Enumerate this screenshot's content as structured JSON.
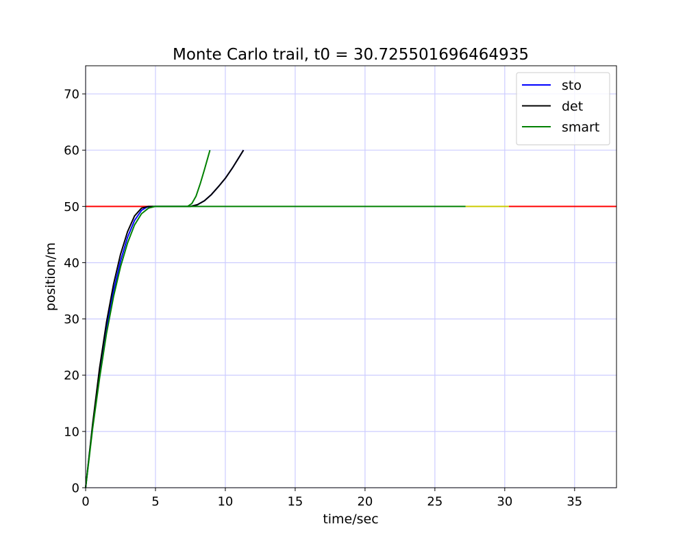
{
  "chart_data": {
    "type": "line",
    "title": "Monte Carlo trail, t0 = 30.725501696464935",
    "xlabel": "time/sec",
    "ylabel": "position/m",
    "xlim": [
      0,
      38
    ],
    "ylim": [
      0,
      75
    ],
    "xticks": [
      0,
      5,
      10,
      15,
      20,
      25,
      30,
      35
    ],
    "yticks": [
      0,
      10,
      20,
      30,
      40,
      50,
      60,
      70
    ],
    "grid": true,
    "grid_color": "#ccccff",
    "legend_position": "top-right",
    "series": [
      {
        "name": "sto",
        "color": "#0000ff",
        "in_legend": true,
        "x": [
          0,
          0.5,
          1,
          1.5,
          2,
          2.5,
          3,
          3.5,
          4,
          4.4,
          4.8,
          7.5,
          8,
          8.5,
          9,
          9.5,
          10,
          10.5,
          11,
          11.3
        ],
        "y": [
          0,
          11,
          20.5,
          28.5,
          35,
          40.3,
          44.5,
          47.5,
          49.3,
          49.9,
          50,
          50,
          50.3,
          51,
          52.1,
          53.5,
          55,
          56.8,
          58.8,
          60
        ]
      },
      {
        "name": "det",
        "color": "#000000",
        "in_legend": true,
        "x": [
          0,
          0.5,
          1,
          1.5,
          2,
          2.5,
          3,
          3.5,
          4,
          4.5,
          7.5,
          8,
          8.5,
          9,
          9.5,
          10,
          10.5,
          11,
          11.3
        ],
        "y": [
          0,
          11.3,
          21.3,
          29.5,
          36.2,
          41.5,
          45.5,
          48.3,
          49.7,
          50,
          50,
          50.3,
          51,
          52.1,
          53.5,
          55,
          56.8,
          58.8,
          60
        ]
      },
      {
        "name": "smart",
        "color": "#008000",
        "in_legend": true,
        "x": [
          0,
          0.5,
          1,
          1.5,
          2,
          2.5,
          3,
          3.5,
          4,
          4.5,
          5,
          7.3,
          7.6,
          7.9,
          8.2,
          8.5,
          8.9
        ],
        "y": [
          0,
          10.5,
          19.5,
          27.5,
          34,
          39.3,
          43.5,
          46.7,
          48.7,
          49.7,
          50,
          50,
          50.5,
          51.8,
          54,
          56.5,
          60
        ]
      },
      {
        "name": "smart-hold",
        "color": "#008000",
        "in_legend": false,
        "x": [
          4.8,
          27.2
        ],
        "y": [
          50,
          50
        ]
      },
      {
        "name": "yellow-segment",
        "color": "#cccc00",
        "in_legend": false,
        "x": [
          27.2,
          30.3
        ],
        "y": [
          50,
          50
        ]
      },
      {
        "name": "red-before",
        "color": "#ff0000",
        "in_legend": false,
        "x": [
          0,
          4.8
        ],
        "y": [
          50,
          50
        ]
      },
      {
        "name": "red-after",
        "color": "#ff0000",
        "in_legend": false,
        "x": [
          30.3,
          38
        ],
        "y": [
          50,
          50
        ]
      }
    ]
  }
}
